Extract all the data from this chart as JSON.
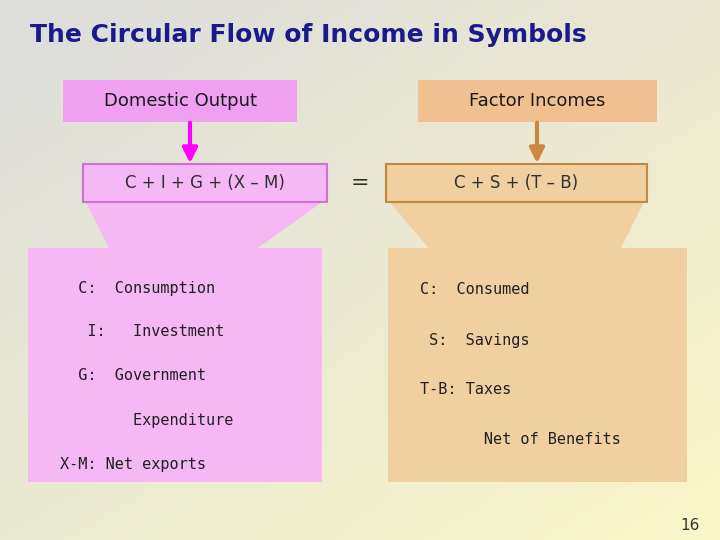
{
  "title": "The Circular Flow of Income in Symbols",
  "title_color": "#1a1a8c",
  "title_fontsize": 18,
  "bg_color_tl": "#dcdcdc",
  "bg_color_br": "#f0eecc",
  "left_box_label": "Domestic Output",
  "right_box_label": "Factor Incomes",
  "left_eq": "C + I + G + (X – M)",
  "right_eq": "C + S + (T – B)",
  "equals": "=",
  "left_detail_lines": [
    "  C:  Consumption",
    "   I:   Investment",
    "  G:  Government",
    "        Expenditure",
    "X-M: Net exports"
  ],
  "right_detail_lines": [
    "C:  Consumed",
    " S:  Savings",
    "T-B: Taxes",
    "       Net of Benefits"
  ],
  "label_box_color_left": "#f0a0f0",
  "label_box_color_right": "#f0c090",
  "eq_box_color_left": "#f5b8f5",
  "eq_box_color_right": "#f0d0a0",
  "detail_box_color_left": "#f5b8f5",
  "detail_box_color_right": "#f0d0a0",
  "funnel_color_left": "#f5b8f5",
  "funnel_color_right": "#f0d0a0",
  "arrow_color_left": "#ff00ff",
  "arrow_color_right": "#cc8840",
  "eq_text_color": "#303030",
  "detail_text_color": "#202020",
  "page_num": "16"
}
